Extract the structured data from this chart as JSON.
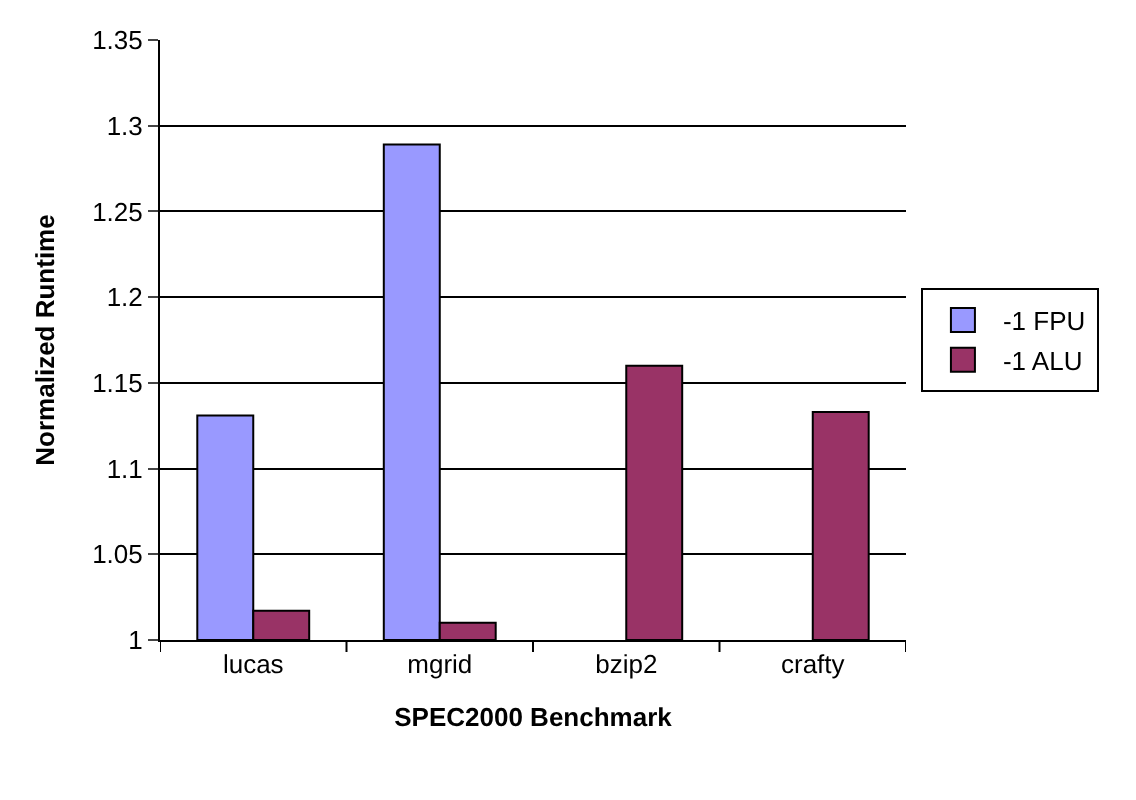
{
  "chart_data": {
    "type": "bar",
    "xlabel": "SPEC2000 Benchmark",
    "ylabel": "Normalized Runtime",
    "categories": [
      "lucas",
      "mgrid",
      "bzip2",
      "crafty"
    ],
    "series": [
      {
        "name": "-1 FPU",
        "color": "#9999ff",
        "values": [
          1.131,
          1.289,
          null,
          null
        ]
      },
      {
        "name": "-1 ALU",
        "color": "#993366",
        "values": [
          1.017,
          1.01,
          1.16,
          1.133
        ]
      }
    ],
    "ylim": [
      1,
      1.35
    ],
    "yticks": [
      1,
      1.05,
      1.1,
      1.15,
      1.2,
      1.25,
      1.3,
      1.35
    ],
    "grid": "y",
    "legend": "right"
  }
}
